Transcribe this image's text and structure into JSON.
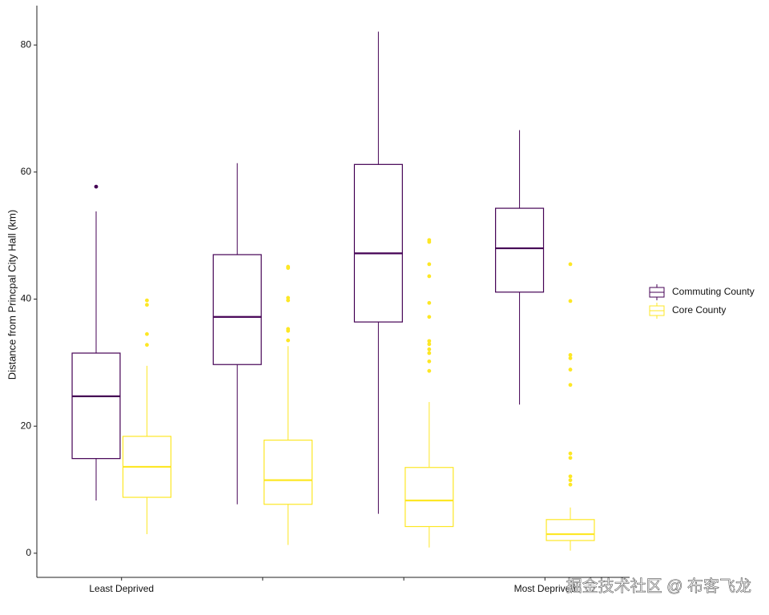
{
  "chart_data": {
    "type": "boxplot",
    "y_label": "Distance from Princpal City Hall (km)",
    "categories": [
      "Least Deprived",
      null,
      null,
      "Most Deprived"
    ],
    "ylim": [
      -3.8,
      86.2
    ],
    "yticks": [
      0,
      20,
      40,
      60,
      80
    ],
    "grid": false,
    "legend": "right",
    "series": [
      {
        "name": "Commuting County",
        "color": "#440154",
        "values": [
          {
            "low": 8.3,
            "q1": 14.9,
            "median": 24.7,
            "q3": 31.5,
            "high": 53.8,
            "outliers": [
              57.7
            ]
          },
          {
            "low": 7.7,
            "q1": 29.7,
            "median": 37.2,
            "q3": 47.0,
            "high": 61.4,
            "outliers": []
          },
          {
            "low": 6.2,
            "q1": 36.4,
            "median": 47.2,
            "q3": 61.2,
            "high": 82.1,
            "outliers": []
          },
          {
            "low": 23.4,
            "q1": 41.1,
            "median": 48.0,
            "q3": 54.3,
            "high": 66.6,
            "outliers": []
          }
        ]
      },
      {
        "name": "Core County",
        "color": "#FDE725",
        "values": [
          {
            "low": 3.0,
            "q1": 8.8,
            "median": 13.6,
            "q3": 18.4,
            "high": 29.5,
            "outliers": [
              39.8,
              39.1,
              34.5,
              32.8
            ]
          },
          {
            "low": 1.3,
            "q1": 7.7,
            "median": 11.5,
            "q3": 17.8,
            "high": 32.6,
            "outliers": [
              45.1,
              44.9,
              40.2,
              39.8,
              35.3,
              35.0,
              33.5
            ]
          },
          {
            "low": 0.9,
            "q1": 4.2,
            "median": 8.3,
            "q3": 13.5,
            "high": 23.8,
            "outliers": [
              49.3,
              49.0,
              45.5,
              43.6,
              39.4,
              37.2,
              33.4,
              32.9,
              32.1,
              31.5,
              30.2,
              28.7
            ]
          },
          {
            "low": 0.4,
            "q1": 2.0,
            "median": 3.0,
            "q3": 5.3,
            "high": 7.2,
            "outliers": [
              45.5,
              39.7,
              31.2,
              30.7,
              28.9,
              26.5,
              15.7,
              15.0,
              12.1,
              11.5,
              10.8
            ]
          }
        ]
      }
    ]
  },
  "watermark": "掘金技术社区 @ 布客飞龙"
}
